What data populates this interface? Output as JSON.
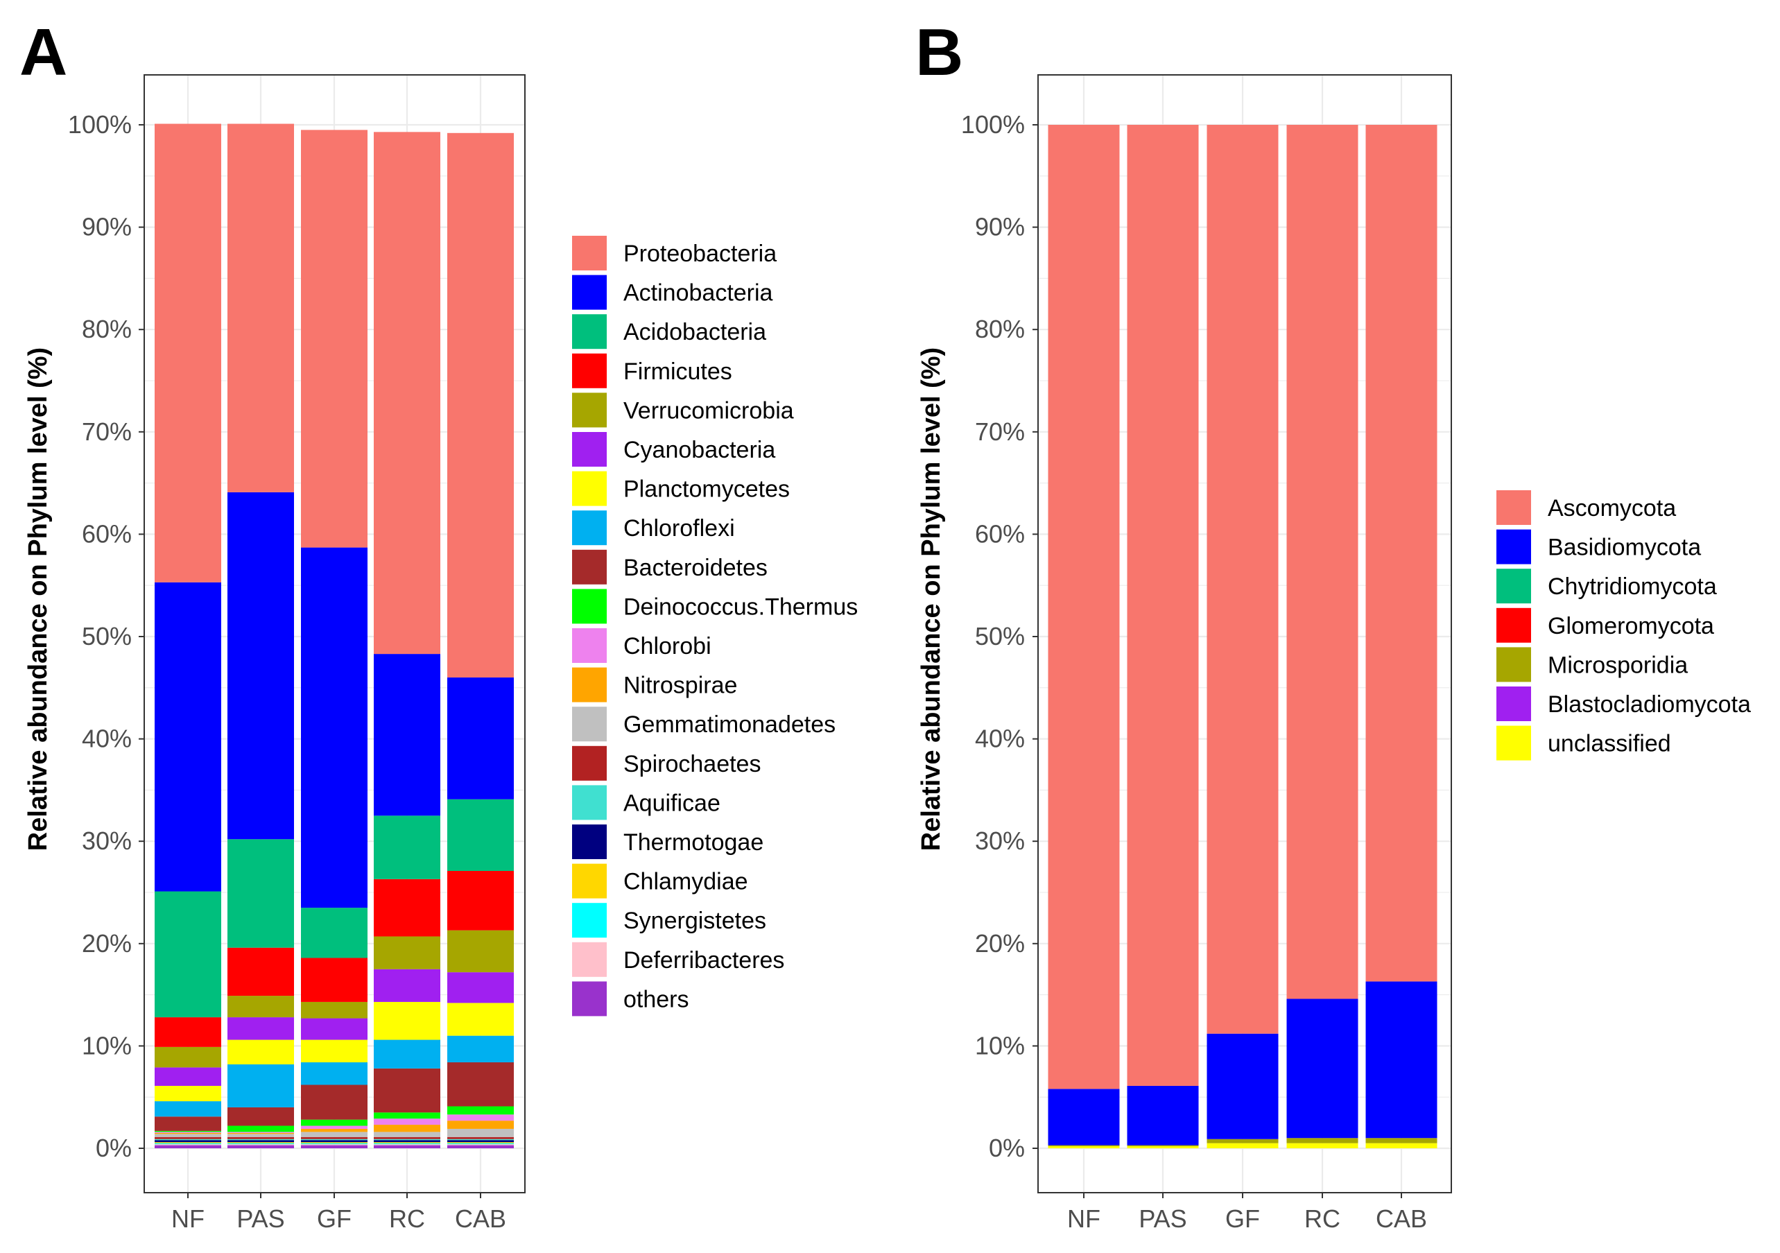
{
  "figure": {
    "panels": [
      "A",
      "B"
    ]
  },
  "chart_data": [
    {
      "panel": "A",
      "type": "bar",
      "stacked": true,
      "title": "",
      "xlabel": "",
      "ylabel": "Relative abundance on Phylum level (%)",
      "ylim": [
        0,
        100
      ],
      "yticks": [
        "0%",
        "10%",
        "20%",
        "30%",
        "40%",
        "50%",
        "60%",
        "70%",
        "80%",
        "90%",
        "100%"
      ],
      "categories": [
        "NF",
        "PAS",
        "GF",
        "RC",
        "CAB"
      ],
      "grid": true,
      "legend_position": "right",
      "series": [
        {
          "name": "others",
          "color": "#9932CC",
          "values": [
            0.3,
            0.3,
            0.3,
            0.3,
            0.3
          ]
        },
        {
          "name": "Deferribacteres",
          "color": "#FFC0CB",
          "values": [
            0.1,
            0.1,
            0.1,
            0.1,
            0.1
          ]
        },
        {
          "name": "Synergistetes",
          "color": "#00FFFF",
          "values": [
            0.1,
            0.1,
            0.1,
            0.1,
            0.1
          ]
        },
        {
          "name": "Chlamydiae",
          "color": "#FFD700",
          "values": [
            0.1,
            0.1,
            0.1,
            0.1,
            0.1
          ]
        },
        {
          "name": "Thermotogae",
          "color": "#000080",
          "values": [
            0.2,
            0.2,
            0.2,
            0.2,
            0.2
          ]
        },
        {
          "name": "Aquificae",
          "color": "#40E0D0",
          "values": [
            0.1,
            0.1,
            0.1,
            0.1,
            0.1
          ]
        },
        {
          "name": "Spirochaetes",
          "color": "#B22222",
          "values": [
            0.2,
            0.2,
            0.2,
            0.2,
            0.2
          ]
        },
        {
          "name": "Gemmatimonadetes",
          "color": "#C0C0C0",
          "values": [
            0.3,
            0.3,
            0.5,
            0.5,
            0.8
          ]
        },
        {
          "name": "Nitrospirae",
          "color": "#FFA500",
          "values": [
            0.1,
            0.1,
            0.3,
            0.7,
            0.8
          ]
        },
        {
          "name": "Chlorobi",
          "color": "#EE82EE",
          "values": [
            0.1,
            0.1,
            0.3,
            0.6,
            0.6
          ]
        },
        {
          "name": "Deinococcus.Thermus",
          "color": "#00FF00",
          "values": [
            0.1,
            0.6,
            0.6,
            0.6,
            0.8
          ]
        },
        {
          "name": "Bacteroidetes",
          "color": "#A52A2A",
          "values": [
            1.4,
            1.8,
            3.4,
            4.3,
            4.3
          ]
        },
        {
          "name": "Chloroflexi",
          "color": "#00B0F0",
          "values": [
            1.5,
            4.2,
            2.2,
            2.8,
            2.6
          ]
        },
        {
          "name": "Planctomycetes",
          "color": "#FFFF00",
          "values": [
            1.5,
            2.4,
            2.2,
            3.7,
            3.2
          ]
        },
        {
          "name": "Cyanobacteria",
          "color": "#A020F0",
          "values": [
            1.8,
            2.2,
            2.1,
            3.2,
            3.0
          ]
        },
        {
          "name": "Verrucomicrobia",
          "color": "#A6A600",
          "values": [
            2.0,
            2.1,
            1.6,
            3.2,
            4.1
          ]
        },
        {
          "name": "Firmicutes",
          "color": "#FF0000",
          "values": [
            2.9,
            4.7,
            4.3,
            5.6,
            5.8
          ]
        },
        {
          "name": "Acidobacteria",
          "color": "#00BF7D",
          "values": [
            12.3,
            10.6,
            4.9,
            6.2,
            7.0
          ]
        },
        {
          "name": "Actinobacteria",
          "color": "#0000FF",
          "values": [
            30.2,
            33.9,
            35.2,
            15.8,
            11.9
          ]
        },
        {
          "name": "Proteobacteria",
          "color": "#F8766D",
          "values": [
            44.8,
            36.0,
            40.8,
            51.0,
            53.2
          ]
        }
      ],
      "legend": [
        "Proteobacteria",
        "Actinobacteria",
        "Acidobacteria",
        "Firmicutes",
        "Verrucomicrobia",
        "Cyanobacteria",
        "Planctomycetes",
        "Chloroflexi",
        "Bacteroidetes",
        "Deinococcus.Thermus",
        "Chlorobi",
        "Nitrospirae",
        "Gemmatimonadetes",
        "Spirochaetes",
        "Aquificae",
        "Thermotogae",
        "Chlamydiae",
        "Synergistetes",
        "Deferribacteres",
        "others"
      ]
    },
    {
      "panel": "B",
      "type": "bar",
      "stacked": true,
      "title": "",
      "xlabel": "",
      "ylabel": "Relative abundance on Phylum level (%)",
      "ylim": [
        0,
        100
      ],
      "yticks": [
        "0%",
        "10%",
        "20%",
        "30%",
        "40%",
        "50%",
        "60%",
        "70%",
        "80%",
        "90%",
        "100%"
      ],
      "categories": [
        "NF",
        "PAS",
        "GF",
        "RC",
        "CAB"
      ],
      "grid": true,
      "legend_position": "right",
      "series": [
        {
          "name": "unclassified",
          "color": "#FFFF00",
          "values": [
            0.2,
            0.2,
            0.5,
            0.5,
            0.5
          ]
        },
        {
          "name": "Blastocladiomycota",
          "color": "#A020F0",
          "values": [
            0.0,
            0.0,
            0.0,
            0.0,
            0.0
          ]
        },
        {
          "name": "Microsporidia",
          "color": "#A6A600",
          "values": [
            0.1,
            0.1,
            0.4,
            0.5,
            0.5
          ]
        },
        {
          "name": "Glomeromycota",
          "color": "#FF0000",
          "values": [
            0.0,
            0.0,
            0.0,
            0.0,
            0.0
          ]
        },
        {
          "name": "Chytridiomycota",
          "color": "#00BF7D",
          "values": [
            0.0,
            0.0,
            0.0,
            0.0,
            0.0
          ]
        },
        {
          "name": "Basidiomycota",
          "color": "#0000FF",
          "values": [
            5.5,
            5.8,
            10.3,
            13.6,
            15.3
          ]
        },
        {
          "name": "Ascomycota",
          "color": "#F8766D",
          "values": [
            94.2,
            93.9,
            88.8,
            85.4,
            83.7
          ]
        }
      ],
      "legend": [
        "Ascomycota",
        "Basidiomycota",
        "Chytridiomycota",
        "Glomeromycota",
        "Microsporidia",
        "Blastocladiomycota",
        "unclassified"
      ]
    }
  ]
}
